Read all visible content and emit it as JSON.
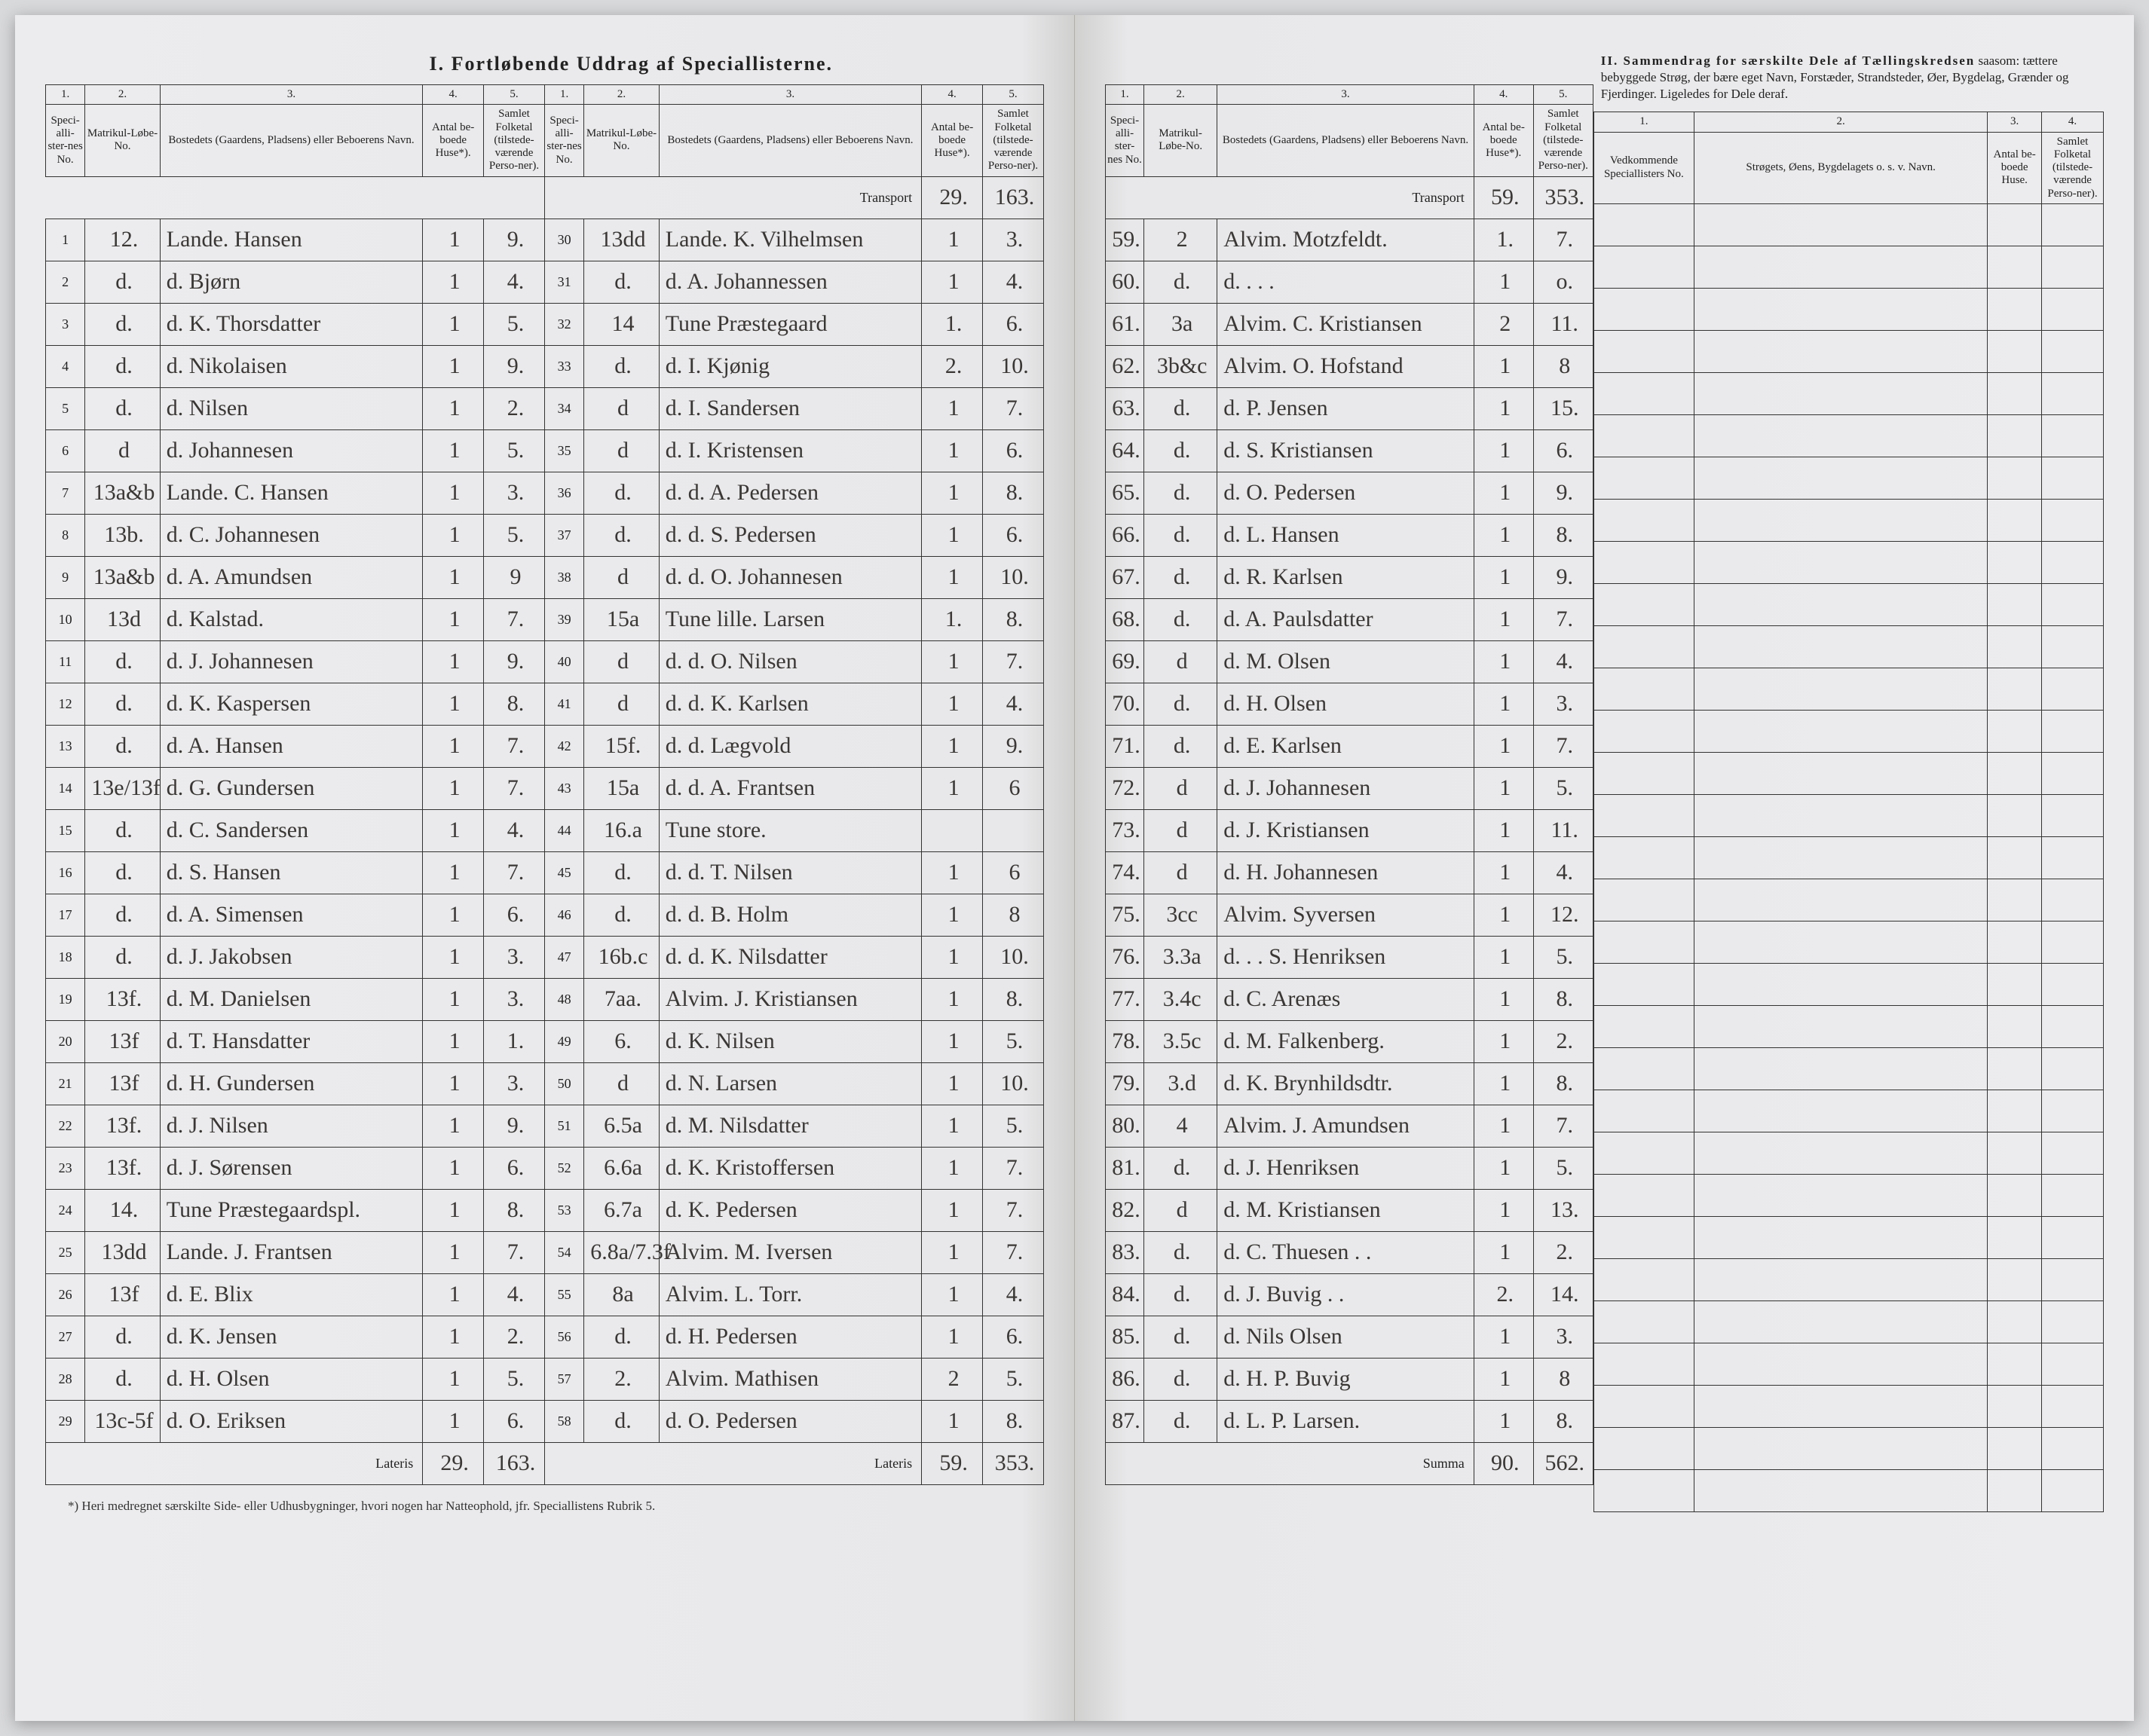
{
  "section1_title": "I. Fortløbende Uddrag af Speciallisterne.",
  "section2_header": "II. Sammendrag for særskilte Dele af Tællingskredsen saasom: tættere bebyggede Strøg, der bære eget Navn, Forstæder, Strandsteder, Øer, Bygdelag, Grænder og Fjerdinger. Ligeledes for Dele deraf.",
  "colnums": [
    "1.",
    "2.",
    "3.",
    "4.",
    "5."
  ],
  "headers": {
    "no": "Speci-alli-ster-nes No.",
    "matrikul": "Matrikul-Løbe-No.",
    "bosted": "Bostedets (Gaardens, Pladsens) eller Beboerens Navn.",
    "huse": "Antal be-boede Huse*).",
    "folketal": "Samlet Folketal (tilstede-værende Perso-ner)."
  },
  "section2_headers": {
    "c1": "1.",
    "c2": "2.",
    "c3": "3.",
    "c4": "4.",
    "vedk": "Vedkommende Speciallisters No.",
    "navn": "Strøgets, Øens, Bygdelagets o. s. v. Navn.",
    "huse": "Antal be-boede Huse.",
    "folk": "Samlet Folketal (tilstede-værende Perso-ner)."
  },
  "transport_label": "Transport",
  "lateris_label": "Lateris",
  "summa_label": "Summa",
  "footnote": "*) Heri medregnet særskilte Side- eller Udhusbygninger, hvori nogen har Natteophold, jfr. Speciallistens Rubrik 5.",
  "transport_mid": {
    "huse": "29.",
    "folk": "163."
  },
  "transport_right": {
    "huse": "59.",
    "folk": "353."
  },
  "lateris_left": {
    "huse": "29.",
    "folk": "163."
  },
  "lateris_mid": {
    "huse": "59.",
    "folk": "353."
  },
  "summa": {
    "huse": "90.",
    "folk": "562."
  },
  "block1": [
    {
      "n": "1",
      "m": "12.",
      "name": "Lande. Hansen",
      "h": "1",
      "f": "9."
    },
    {
      "n": "2",
      "m": "d.",
      "name": "d. Bjørn",
      "h": "1",
      "f": "4."
    },
    {
      "n": "3",
      "m": "d.",
      "name": "d. K. Thorsdatter",
      "h": "1",
      "f": "5."
    },
    {
      "n": "4",
      "m": "d.",
      "name": "d. Nikolaisen",
      "h": "1",
      "f": "9."
    },
    {
      "n": "5",
      "m": "d.",
      "name": "d. Nilsen",
      "h": "1",
      "f": "2."
    },
    {
      "n": "6",
      "m": "d",
      "name": "d. Johannesen",
      "h": "1",
      "f": "5."
    },
    {
      "n": "7",
      "m": "13a&b",
      "name": "Lande. C. Hansen",
      "h": "1",
      "f": "3."
    },
    {
      "n": "8",
      "m": "13b.",
      "name": "d. C. Johannesen",
      "h": "1",
      "f": "5."
    },
    {
      "n": "9",
      "m": "13a&b",
      "name": "d. A. Amundsen",
      "h": "1",
      "f": "9"
    },
    {
      "n": "10",
      "m": "13d",
      "name": "d. Kalstad.",
      "h": "1",
      "f": "7."
    },
    {
      "n": "11",
      "m": "d.",
      "name": "d. J. Johannesen",
      "h": "1",
      "f": "9."
    },
    {
      "n": "12",
      "m": "d.",
      "name": "d. K. Kaspersen",
      "h": "1",
      "f": "8."
    },
    {
      "n": "13",
      "m": "d.",
      "name": "d. A. Hansen",
      "h": "1",
      "f": "7."
    },
    {
      "n": "14",
      "m": "13e/13f",
      "name": "d. G. Gundersen",
      "h": "1",
      "f": "7."
    },
    {
      "n": "15",
      "m": "d.",
      "name": "d. C. Sandersen",
      "h": "1",
      "f": "4."
    },
    {
      "n": "16",
      "m": "d.",
      "name": "d. S. Hansen",
      "h": "1",
      "f": "7."
    },
    {
      "n": "17",
      "m": "d.",
      "name": "d. A. Simensen",
      "h": "1",
      "f": "6."
    },
    {
      "n": "18",
      "m": "d.",
      "name": "d. J. Jakobsen",
      "h": "1",
      "f": "3."
    },
    {
      "n": "19",
      "m": "13f.",
      "name": "d. M. Danielsen",
      "h": "1",
      "f": "3."
    },
    {
      "n": "20",
      "m": "13f",
      "name": "d. T. Hansdatter",
      "h": "1",
      "f": "1."
    },
    {
      "n": "21",
      "m": "13f",
      "name": "d. H. Gundersen",
      "h": "1",
      "f": "3."
    },
    {
      "n": "22",
      "m": "13f.",
      "name": "d. J. Nilsen",
      "h": "1",
      "f": "9."
    },
    {
      "n": "23",
      "m": "13f.",
      "name": "d. J. Sørensen",
      "h": "1",
      "f": "6."
    },
    {
      "n": "24",
      "m": "14.",
      "name": "Tune Præstegaardspl.",
      "h": "1",
      "f": "8."
    },
    {
      "n": "25",
      "m": "13dd",
      "name": "Lande. J. Frantsen",
      "h": "1",
      "f": "7."
    },
    {
      "n": "26",
      "m": "13f",
      "name": "d. E. Blix",
      "h": "1",
      "f": "4."
    },
    {
      "n": "27",
      "m": "d.",
      "name": "d. K. Jensen",
      "h": "1",
      "f": "2."
    },
    {
      "n": "28",
      "m": "d.",
      "name": "d. H. Olsen",
      "h": "1",
      "f": "5."
    },
    {
      "n": "29",
      "m": "13c-5f",
      "name": "d. O. Eriksen",
      "h": "1",
      "f": "6."
    }
  ],
  "block2": [
    {
      "n": "30",
      "m": "13dd",
      "name": "Lande. K. Vilhelmsen",
      "h": "1",
      "f": "3."
    },
    {
      "n": "31",
      "m": "d.",
      "name": "d. A. Johannessen",
      "h": "1",
      "f": "4."
    },
    {
      "n": "32",
      "m": "14",
      "name": "Tune Præstegaard",
      "h": "1.",
      "f": "6."
    },
    {
      "n": "33",
      "m": "d.",
      "name": "d. I. Kjønig",
      "h": "2.",
      "f": "10."
    },
    {
      "n": "34",
      "m": "d",
      "name": "d. I. Sandersen",
      "h": "1",
      "f": "7."
    },
    {
      "n": "35",
      "m": "d",
      "name": "d. I. Kristensen",
      "h": "1",
      "f": "6."
    },
    {
      "n": "36",
      "m": "d.",
      "name": "d. d. A. Pedersen",
      "h": "1",
      "f": "8."
    },
    {
      "n": "37",
      "m": "d.",
      "name": "d. d. S. Pedersen",
      "h": "1",
      "f": "6."
    },
    {
      "n": "38",
      "m": "d",
      "name": "d. d. O. Johannesen",
      "h": "1",
      "f": "10."
    },
    {
      "n": "39",
      "m": "15a",
      "name": "Tune lille. Larsen",
      "h": "1.",
      "f": "8."
    },
    {
      "n": "40",
      "m": "d",
      "name": "d. d. O. Nilsen",
      "h": "1",
      "f": "7."
    },
    {
      "n": "41",
      "m": "d",
      "name": "d. d. K. Karlsen",
      "h": "1",
      "f": "4."
    },
    {
      "n": "42",
      "m": "15f.",
      "name": "d. d. Lægvold",
      "h": "1",
      "f": "9."
    },
    {
      "n": "43",
      "m": "15a",
      "name": "d. d. A. Frantsen",
      "h": "1",
      "f": "6"
    },
    {
      "n": "44",
      "m": "16.a",
      "name": "Tune store.",
      "h": "",
      "f": ""
    },
    {
      "n": "45",
      "m": "d.",
      "name": "d. d. T. Nilsen",
      "h": "1",
      "f": "6"
    },
    {
      "n": "46",
      "m": "d.",
      "name": "d. d. B. Holm",
      "h": "1",
      "f": "8"
    },
    {
      "n": "47",
      "m": "16b.c",
      "name": "d. d. K. Nilsdatter",
      "h": "1",
      "f": "10."
    },
    {
      "n": "48",
      "m": "7aa.",
      "name": "Alvim. J. Kristiansen",
      "h": "1",
      "f": "8."
    },
    {
      "n": "49",
      "m": "6.",
      "name": "d. K. Nilsen",
      "h": "1",
      "f": "5."
    },
    {
      "n": "50",
      "m": "d",
      "name": "d. N. Larsen",
      "h": "1",
      "f": "10."
    },
    {
      "n": "51",
      "m": "6.5a",
      "name": "d. M. Nilsdatter",
      "h": "1",
      "f": "5."
    },
    {
      "n": "52",
      "m": "6.6a",
      "name": "d. K. Kristoffersen",
      "h": "1",
      "f": "7."
    },
    {
      "n": "53",
      "m": "6.7a",
      "name": "d. K. Pedersen",
      "h": "1",
      "f": "7."
    },
    {
      "n": "54",
      "m": "6.8a/7.3f",
      "name": "Alvim. M. Iversen",
      "h": "1",
      "f": "7."
    },
    {
      "n": "55",
      "m": "8a",
      "name": "Alvim. L. Torr.",
      "h": "1",
      "f": "4."
    },
    {
      "n": "56",
      "m": "d.",
      "name": "d. H. Pedersen",
      "h": "1",
      "f": "6."
    },
    {
      "n": "57",
      "m": "2.",
      "name": "Alvim. Mathisen",
      "h": "2",
      "f": "5."
    },
    {
      "n": "58",
      "m": "d.",
      "name": "d. O. Pedersen",
      "h": "1",
      "f": "8."
    }
  ],
  "block3": [
    {
      "n": "59.",
      "m": "2",
      "name": "Alvim. Motzfeldt.",
      "h": "1.",
      "f": "7."
    },
    {
      "n": "60.",
      "m": "d.",
      "name": "d. . . .",
      "h": "1",
      "f": "o."
    },
    {
      "n": "61.",
      "m": "3a",
      "name": "Alvim. C. Kristiansen",
      "h": "2",
      "f": "11."
    },
    {
      "n": "62.",
      "m": "3b&c",
      "name": "Alvim. O. Hofstand",
      "h": "1",
      "f": "8"
    },
    {
      "n": "63.",
      "m": "d.",
      "name": "d. P. Jensen",
      "h": "1",
      "f": "15."
    },
    {
      "n": "64.",
      "m": "d.",
      "name": "d. S. Kristiansen",
      "h": "1",
      "f": "6."
    },
    {
      "n": "65.",
      "m": "d.",
      "name": "d. O. Pedersen",
      "h": "1",
      "f": "9."
    },
    {
      "n": "66.",
      "m": "d.",
      "name": "d. L. Hansen",
      "h": "1",
      "f": "8."
    },
    {
      "n": "67.",
      "m": "d.",
      "name": "d. R. Karlsen",
      "h": "1",
      "f": "9."
    },
    {
      "n": "68.",
      "m": "d.",
      "name": "d. A. Paulsdatter",
      "h": "1",
      "f": "7."
    },
    {
      "n": "69.",
      "m": "d",
      "name": "d. M. Olsen",
      "h": "1",
      "f": "4."
    },
    {
      "n": "70.",
      "m": "d.",
      "name": "d. H. Olsen",
      "h": "1",
      "f": "3."
    },
    {
      "n": "71.",
      "m": "d.",
      "name": "d. E. Karlsen",
      "h": "1",
      "f": "7."
    },
    {
      "n": "72.",
      "m": "d",
      "name": "d. J. Johannesen",
      "h": "1",
      "f": "5."
    },
    {
      "n": "73.",
      "m": "d",
      "name": "d. J. Kristiansen",
      "h": "1",
      "f": "11."
    },
    {
      "n": "74.",
      "m": "d",
      "name": "d. H. Johannesen",
      "h": "1",
      "f": "4."
    },
    {
      "n": "75.",
      "m": "3cc",
      "name": "Alvim. Syversen",
      "h": "1",
      "f": "12."
    },
    {
      "n": "76.",
      "m": "3.3a",
      "name": "d. . . S. Henriksen",
      "h": "1",
      "f": "5."
    },
    {
      "n": "77.",
      "m": "3.4c",
      "name": "d. C. Arenæs",
      "h": "1",
      "f": "8."
    },
    {
      "n": "78.",
      "m": "3.5c",
      "name": "d. M. Falkenberg.",
      "h": "1",
      "f": "2."
    },
    {
      "n": "79.",
      "m": "3.d",
      "name": "d. K. Brynhildsdtr.",
      "h": "1",
      "f": "8."
    },
    {
      "n": "80.",
      "m": "4",
      "name": "Alvim. J. Amundsen",
      "h": "1",
      "f": "7."
    },
    {
      "n": "81.",
      "m": "d.",
      "name": "d. J. Henriksen",
      "h": "1",
      "f": "5."
    },
    {
      "n": "82.",
      "m": "d",
      "name": "d. M. Kristiansen",
      "h": "1",
      "f": "13."
    },
    {
      "n": "83.",
      "m": "d.",
      "name": "d. C. Thuesen . .",
      "h": "1",
      "f": "2."
    },
    {
      "n": "84.",
      "m": "d.",
      "name": "d. J. Buvig . .",
      "h": "2.",
      "f": "14."
    },
    {
      "n": "85.",
      "m": "d.",
      "name": "d. Nils Olsen",
      "h": "1",
      "f": "3."
    },
    {
      "n": "86.",
      "m": "d.",
      "name": "d. H. P. Buvig",
      "h": "1",
      "f": "8"
    },
    {
      "n": "87.",
      "m": "d.",
      "name": "d. L. P. Larsen.",
      "h": "1",
      "f": "8."
    }
  ]
}
